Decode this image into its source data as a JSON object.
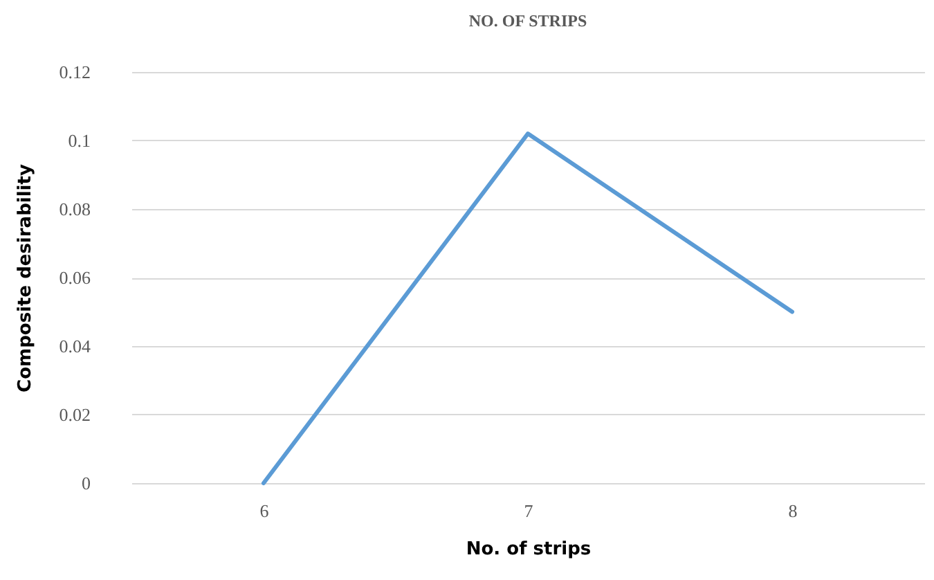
{
  "chart_data": {
    "type": "line",
    "title": "NO. OF STRIPS",
    "xlabel": "No. of strips",
    "ylabel": "Composite desirability",
    "categories": [
      "6",
      "7",
      "8"
    ],
    "series": [
      {
        "color": "#5b9bd5",
        "values": [
          0,
          0.102,
          0.05
        ]
      }
    ],
    "ylim": [
      0,
      0.12
    ],
    "yticks": [
      0,
      0.02,
      0.04,
      0.06,
      0.08,
      0.1,
      0.12
    ],
    "grid": "y",
    "legend": false,
    "marker": "none",
    "line_style": "solid"
  }
}
